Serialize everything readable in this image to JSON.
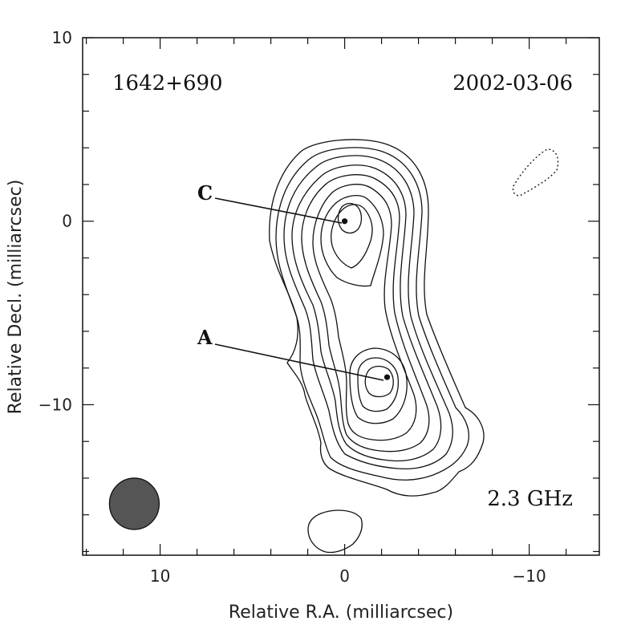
{
  "chart_data": {
    "type": "contour",
    "source_name": "1642+690",
    "date": "2002-03-06",
    "frequency": "2.3 GHz",
    "xlabel": "Relative R.A. (milliarcsec)",
    "ylabel": "Relative Decl. (milliarcsec)",
    "xlim": [
      14.2,
      -13.8
    ],
    "ylim": [
      -18.2,
      10.0
    ],
    "x_ticks": [
      10,
      0,
      -10
    ],
    "x_tick_labels": [
      "10",
      "0",
      "−10"
    ],
    "y_ticks": [
      10,
      0,
      -10
    ],
    "y_tick_labels": [
      "10",
      "0",
      "−10"
    ],
    "components": [
      {
        "label": "C",
        "x": 0.0,
        "y": 0.0
      },
      {
        "label": "A",
        "x": -2.3,
        "y": -8.5
      }
    ],
    "beam": {
      "x": 11.4,
      "y": -15.4,
      "color": "#555555"
    }
  }
}
